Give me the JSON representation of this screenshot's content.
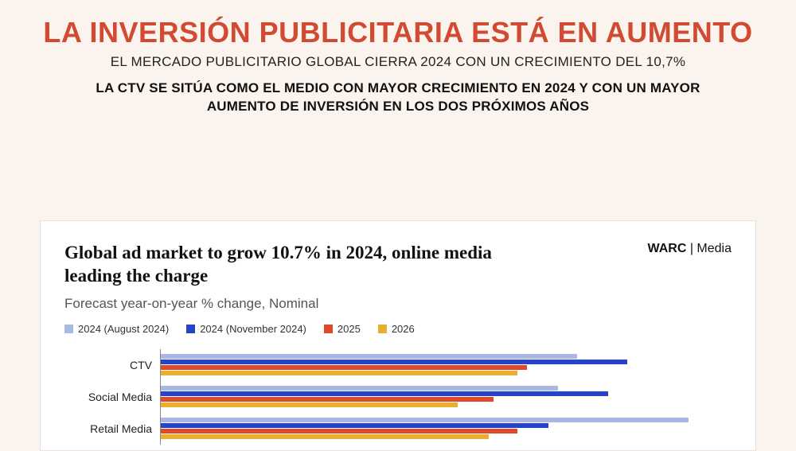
{
  "header": {
    "title": "LA INVERSIÓN PUBLICITARIA ESTÁ EN AUMENTO",
    "subtitle1": "EL MERCADO PUBLICITARIO GLOBAL CIERRA 2024 CON UN CRECIMIENTO DEL 10,7%",
    "subtitle2_line1": "LA CTV SE SITÚA COMO EL MEDIO CON MAYOR CRECIMIENTO EN 2024 Y CON UN MAYOR",
    "subtitle2_line2": "AUMENTO DE INVERSIÓN EN LOS DOS PRÓXIMOS AÑOS"
  },
  "page_background": "#fbf4ee",
  "title_color": "#d14a32",
  "chart": {
    "type": "bar",
    "orientation": "horizontal",
    "grouped": true,
    "title": "Global ad market to grow 10.7% in 2024, online media leading the charge",
    "subtitle": "Forecast year-on-year % change, Nominal",
    "brand_bold": "WARC",
    "brand_sep": " | ",
    "brand_light": "Media",
    "background_color": "#ffffff",
    "border_color": "#e5e0da",
    "title_fontsize": 23,
    "subtitle_fontsize": 17,
    "subtitle_color": "#555555",
    "legend_fontsize": 13,
    "category_label_fontsize": 14,
    "xlim": [
      0,
      24
    ],
    "series": [
      {
        "key": "aug2024",
        "label": "2024 (August 2024)",
        "color": "#a9b9e6"
      },
      {
        "key": "nov2024",
        "label": "2024 (November 2024)",
        "color": "#2744c9"
      },
      {
        "key": "y2025",
        "label": "2025",
        "color": "#e04a2b"
      },
      {
        "key": "y2026",
        "label": "2026",
        "color": "#e8ae30"
      }
    ],
    "categories": [
      {
        "label": "CTV",
        "values": {
          "aug2024": 17.5,
          "nov2024": 19.6,
          "y2025": 15.4,
          "y2026": 15.0
        }
      },
      {
        "label": "Social Media",
        "values": {
          "aug2024": 16.7,
          "nov2024": 18.8,
          "y2025": 14.0,
          "y2026": 12.5
        }
      },
      {
        "label": "Retail Media",
        "values": {
          "aug2024": 22.2,
          "nov2024": 16.3,
          "y2025": 15.0,
          "y2026": 13.8
        }
      }
    ]
  }
}
